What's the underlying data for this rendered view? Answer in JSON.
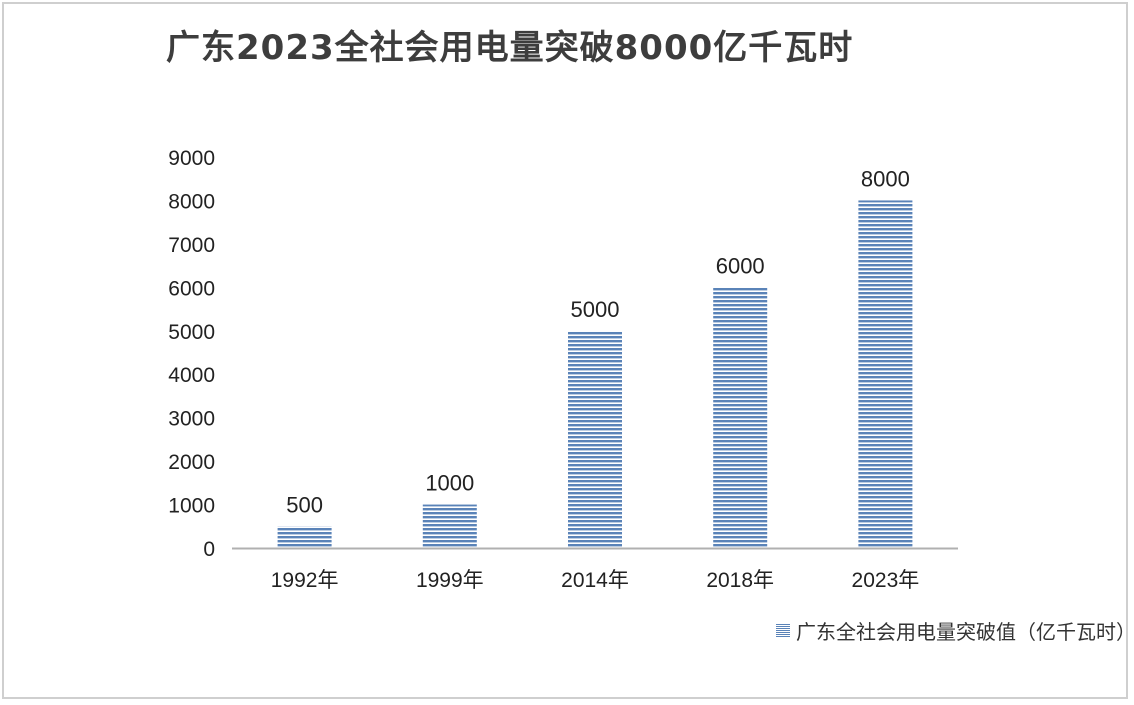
{
  "chart_data": {
    "type": "bar",
    "title": "广东2023全社会用电量突破8000亿千瓦时",
    "categories": [
      "1992年",
      "1999年",
      "2014年",
      "2018年",
      "2023年"
    ],
    "series": [
      {
        "name": "广东全社会用电量突破值（亿千瓦时）",
        "values": [
          500,
          1000,
          5000,
          6000,
          8000
        ],
        "data_labels": [
          "500",
          "1000",
          "5000",
          "6000",
          "8000"
        ]
      }
    ],
    "yticks": [
      "0",
      "1000",
      "2000",
      "3000",
      "4000",
      "5000",
      "6000",
      "7000",
      "8000",
      "9000"
    ],
    "ylim": [
      0,
      9000
    ],
    "xlabel": "",
    "ylabel": "",
    "grid": false,
    "legend_position": "bottom-right",
    "colors": {
      "bar_stripe": "#5a83b8",
      "bar_gap": "#ffffff",
      "axis": "#b0b0b0",
      "text": "#222222"
    }
  }
}
